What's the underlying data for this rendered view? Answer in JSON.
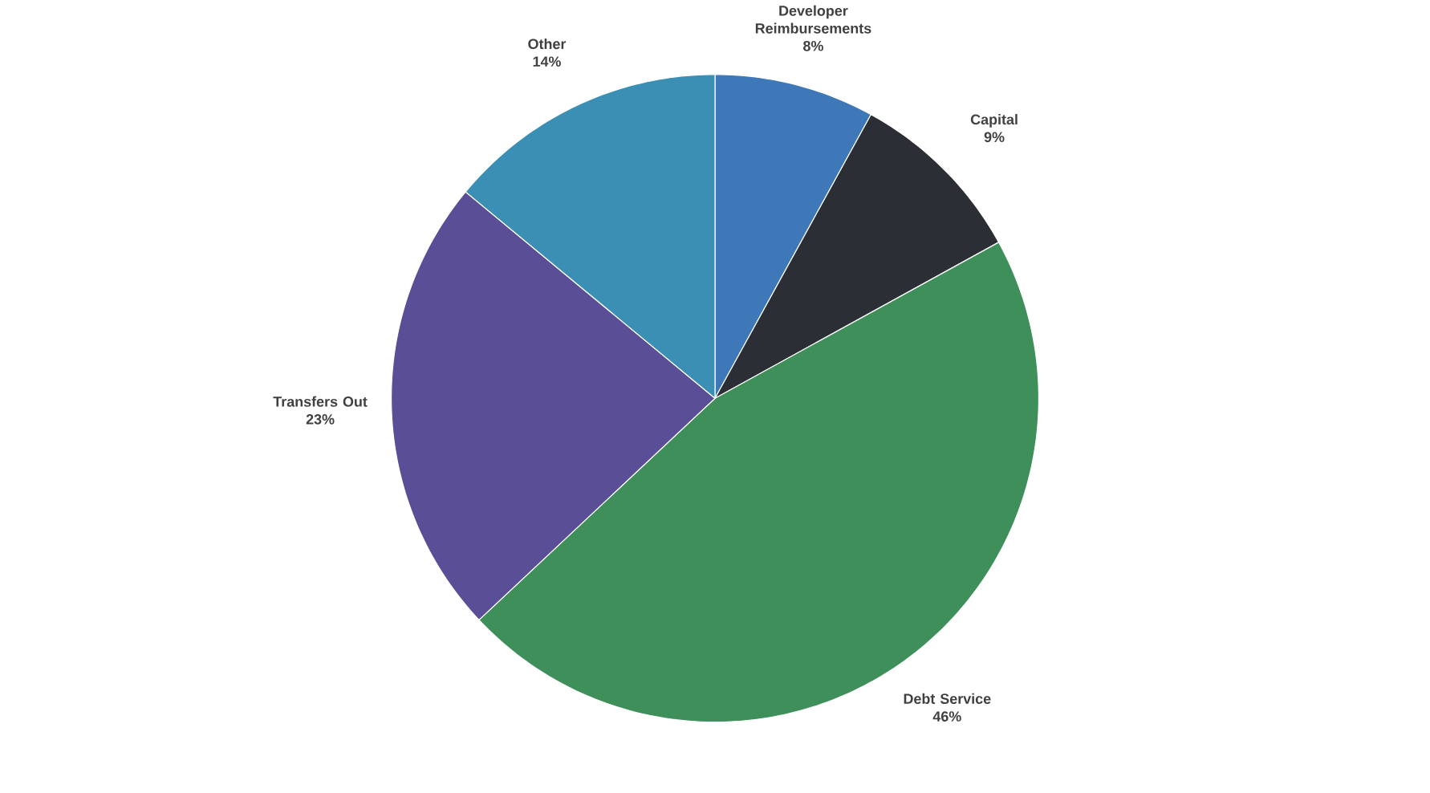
{
  "chart_data": {
    "type": "pie",
    "categories": [
      "Developer Reimbursements",
      "Capital",
      "Debt Service",
      "Transfers Out",
      "Other"
    ],
    "values": [
      8,
      9,
      46,
      23,
      14
    ],
    "value_labels": [
      "8%",
      "9%",
      "46%",
      "23%",
      "14%"
    ],
    "colors": [
      "#3f78b8",
      "#2b2e35",
      "#3f8f5a",
      "#5a4e96",
      "#3b8fb5"
    ]
  }
}
